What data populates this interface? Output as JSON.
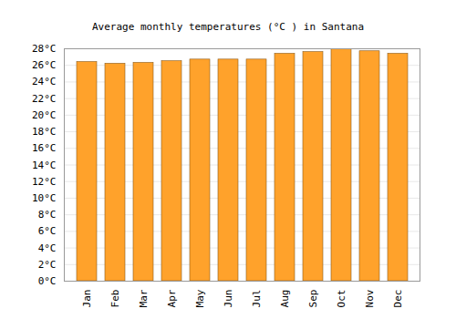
{
  "chart_data": {
    "type": "bar",
    "title": "Average monthly temperatures (°C ) in Santana",
    "categories": [
      "Jan",
      "Feb",
      "Mar",
      "Apr",
      "May",
      "Jun",
      "Jul",
      "Aug",
      "Sep",
      "Oct",
      "Nov",
      "Dec"
    ],
    "values": [
      26.4,
      26.2,
      26.3,
      26.5,
      26.7,
      26.7,
      26.7,
      27.4,
      27.6,
      28.0,
      27.7,
      27.4
    ],
    "color": "#ffa22b",
    "ylim": [
      0,
      28
    ],
    "yticks": [
      {
        "value": 0,
        "label": "0°C"
      },
      {
        "value": 2,
        "label": "2°C"
      },
      {
        "value": 4,
        "label": "4°C"
      },
      {
        "value": 6,
        "label": "6°C"
      },
      {
        "value": 8,
        "label": "8°C"
      },
      {
        "value": 10,
        "label": "10°C"
      },
      {
        "value": 12,
        "label": "12°C"
      },
      {
        "value": 14,
        "label": "14°C"
      },
      {
        "value": 16,
        "label": "16°C"
      },
      {
        "value": 18,
        "label": "18°C"
      },
      {
        "value": 20,
        "label": "20°C"
      },
      {
        "value": 22,
        "label": "22°C"
      },
      {
        "value": 24,
        "label": "24°C"
      },
      {
        "value": 26,
        "label": "26°C"
      },
      {
        "value": 28,
        "label": "28°C"
      }
    ],
    "grid": true
  }
}
